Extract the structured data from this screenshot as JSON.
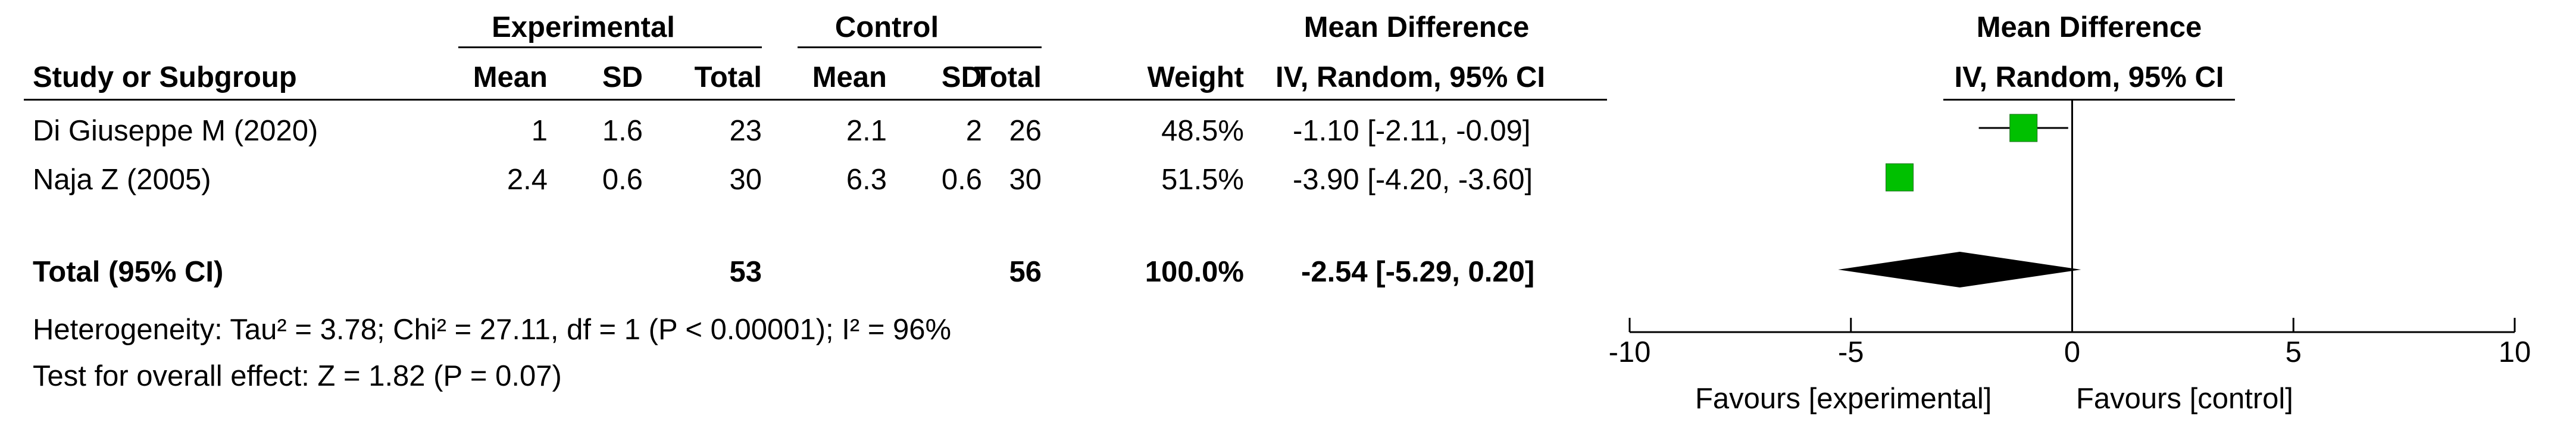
{
  "headers": {
    "experimental": "Experimental",
    "control": "Control",
    "mean_difference_left": "Mean Difference",
    "mean_difference_right": "Mean Difference",
    "study": "Study or Subgroup",
    "exp_mean": "Mean",
    "exp_sd": "SD",
    "exp_total": "Total",
    "ctl_mean": "Mean",
    "ctl_sd": "SD",
    "ctl_total": "Total",
    "weight": "Weight",
    "method_left": "IV, Random, 95% CI",
    "method_right": "IV, Random, 95% CI"
  },
  "studies": [
    {
      "name": "Di Giuseppe M (2020)",
      "exp_mean": "1",
      "exp_sd": "1.6",
      "exp_total": "23",
      "ctl_mean": "2.1",
      "ctl_sd": "2",
      "ctl_total": "26",
      "weight": "48.5%",
      "ci_text": "-1.10 [-2.11, -0.09]"
    },
    {
      "name": "Naja Z (2005)",
      "exp_mean": "2.4",
      "exp_sd": "0.6",
      "exp_total": "30",
      "ctl_mean": "6.3",
      "ctl_sd": "0.6",
      "ctl_total": "30",
      "weight": "51.5%",
      "ci_text": "-3.90 [-4.20, -3.60]"
    }
  ],
  "total": {
    "label": "Total (95% CI)",
    "exp_total": "53",
    "ctl_total": "56",
    "weight": "100.0%",
    "ci_text": "-2.54 [-5.29, 0.20]"
  },
  "heterogeneity": "Heterogeneity: Tau² = 3.78; Chi² = 27.11, df = 1 (P < 0.00001); I² = 96%",
  "overall_effect": "Test for overall effect: Z = 1.82 (P = 0.07)",
  "axis": {
    "favours_left": "Favours [experimental]",
    "favours_right": "Favours [control]"
  },
  "colors": {
    "study_marker": "#00c000",
    "diamond": "#000000"
  },
  "chart_data": {
    "type": "forest",
    "xlim": [
      -10,
      10
    ],
    "ticks": [
      -10,
      -5,
      0,
      5,
      10
    ],
    "tick_labels": [
      "-10",
      "-5",
      "0",
      "5",
      "10"
    ],
    "studies": [
      {
        "estimate": -1.1,
        "lower": -2.11,
        "upper": -0.09,
        "weight": 48.5
      },
      {
        "estimate": -3.9,
        "lower": -4.2,
        "upper": -3.6,
        "weight": 51.5
      }
    ],
    "pooled": {
      "estimate": -2.54,
      "lower": -5.29,
      "upper": 0.2
    }
  }
}
